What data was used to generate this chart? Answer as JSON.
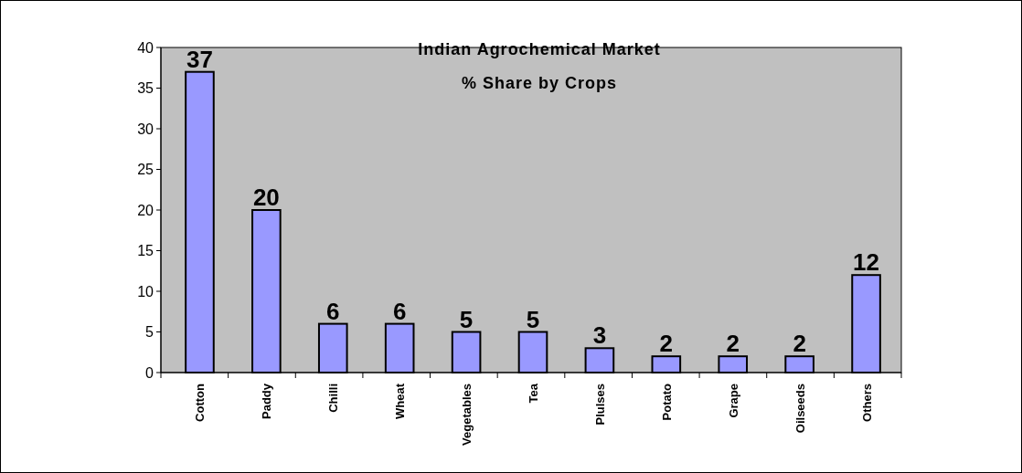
{
  "chart_data": {
    "type": "bar",
    "title": "Indian Agrochemical Market",
    "subtitle": "% Share by Crops",
    "categories": [
      "Cotton",
      "Paddy",
      "Chilli",
      "Wheat",
      "Vegetables",
      "Tea",
      "Plulses",
      "Potato",
      "Grape",
      "Oilseeds",
      "Others"
    ],
    "values": [
      37,
      20,
      6,
      6,
      5,
      5,
      3,
      2,
      2,
      2,
      12
    ],
    "color": "#9999ff",
    "ylim": [
      0,
      40
    ],
    "yticks": [
      0,
      5,
      10,
      15,
      20,
      25,
      30,
      35,
      40
    ],
    "data_labels": true
  }
}
